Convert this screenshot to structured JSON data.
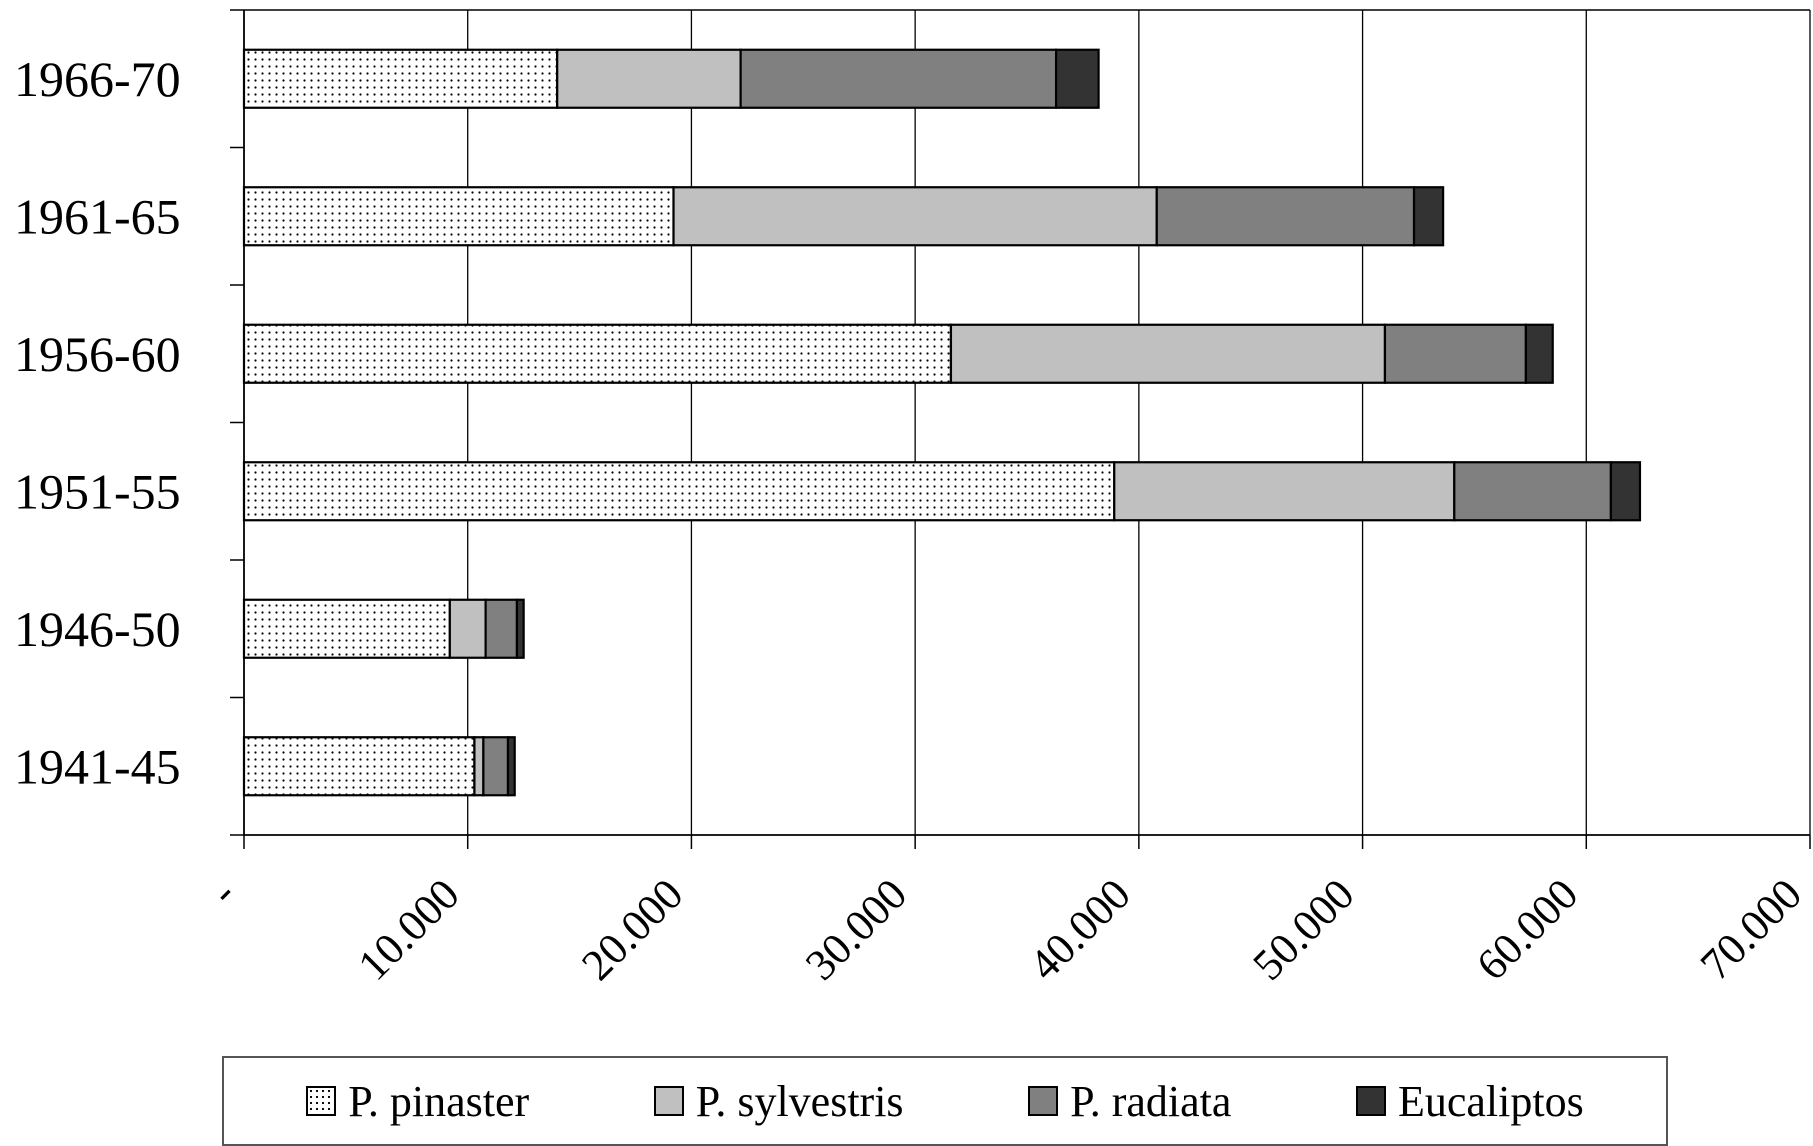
{
  "chart_data": {
    "type": "bar",
    "orientation": "horizontal",
    "stacked": true,
    "categories": [
      "1941-45",
      "1946-50",
      "1951-55",
      "1956-60",
      "1961-65",
      "1966-70"
    ],
    "series": [
      {
        "name": "P. pinaster",
        "values": [
          10300,
          9200,
          38900,
          31600,
          19200,
          14000
        ],
        "color": "#ffffff",
        "pattern": "dots"
      },
      {
        "name": "P. sylvestris",
        "values": [
          400,
          1600,
          15200,
          19400,
          21600,
          8200
        ],
        "color": "#c0c0c0"
      },
      {
        "name": "P. radiata",
        "values": [
          1100,
          1400,
          7000,
          6300,
          11500,
          14100
        ],
        "color": "#808080"
      },
      {
        "name": "Eucaliptos",
        "values": [
          300,
          300,
          1300,
          1200,
          1300,
          1900
        ],
        "color": "#333333"
      }
    ],
    "x_ticks": [
      "-",
      "10.000",
      "20.000",
      "30.000",
      "40.000",
      "50.000",
      "60.000",
      "70.000"
    ],
    "xlim": [
      0,
      70000
    ],
    "grid": "vertical",
    "legend": "bottom",
    "title": "",
    "xlabel": "",
    "ylabel": ""
  }
}
